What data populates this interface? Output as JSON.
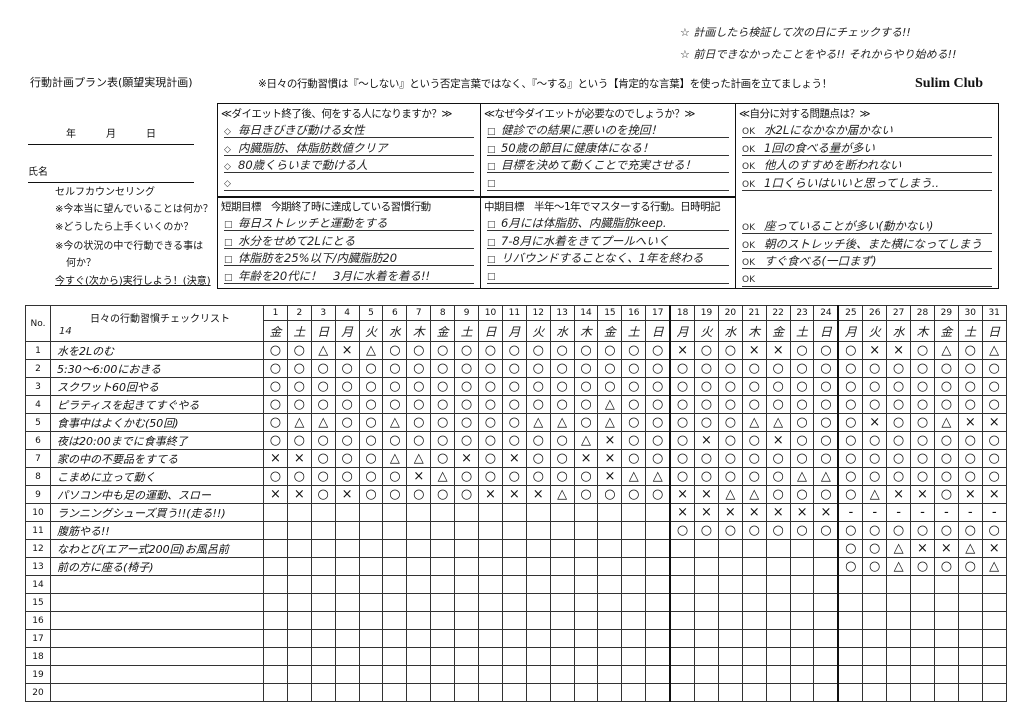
{
  "header": {
    "title": "行動計画プラン表(願望実現計画)",
    "notice": "※日々の行動習慣は『〜しない』という否定言葉ではなく、『〜する』という【肯定的な言葉】を使った計画を立てましょう！",
    "brand": "Sulim Club",
    "memo1": "☆ 計画したら検証して次の日にチェックする!!",
    "memo2": "☆ 前日できなかったことをやる!! それからやり始める!!"
  },
  "left": {
    "date_label": "年　　　月　　　日",
    "name_label": "氏名",
    "counseling": "セルフカウンセリング",
    "q1": "※今本当に望んでいることは何か？",
    "q2": "※どうしたら上手くいくのか？",
    "q3": "※今の状況の中で行動できる事は",
    "q3b": "何か？",
    "action": "今すぐ(次から)実行しよう！(決意)"
  },
  "boxes": {
    "after": {
      "title": "≪ダイエット終了後、何をする人になりますか？≫",
      "bullet": "◇",
      "items": [
        "毎日きびきび動ける女性",
        "内臓脂肪、体脂肪数値クリア",
        "80歳くらいまで動ける人",
        ""
      ]
    },
    "why": {
      "title": "≪なぜ今ダイエットが必要なのでしょうか？≫",
      "bullet": "□",
      "items": [
        "健診での結果に悪いのを挽回！",
        "50歳の節目に健康体になる！",
        "目標を決めて動くことで充実させる！",
        ""
      ]
    },
    "problems": {
      "title": "≪自分に対する問題点は？≫",
      "bullet": "OK",
      "items": [
        "水2Lになかなか届かない",
        "1回の食べる量が多い",
        "他人のすすめを断われない",
        "1口くらいはいいと思ってしまう..",
        "座っていることが多い(動かない)",
        "朝のストレッチ後、また横になってしまう",
        "すぐ食べる(一口まず)",
        ""
      ]
    },
    "short": {
      "title": "短期目標　今期終了時に達成している習慣行動",
      "bullet": "□",
      "items": [
        "毎日ストレッチと運動をする",
        "水分をせめて2Lにとる",
        "体脂肪を25%以下/内臓脂肪20",
        "年齢を20代に！　3月に水着を着る!!"
      ]
    },
    "mid": {
      "title": "中期目標　半年〜1年でマスターする行動。日時明記",
      "bullet": "□",
      "items": [
        "6月には体脂肪、内臓脂肪keep.",
        "7-8月に水着をきてプールへいく",
        "リバウンドすることなく、1年を終わる",
        ""
      ]
    }
  },
  "checklist": {
    "no_label": "No.",
    "title": "日々の行動習慣チェックリスト",
    "title_note": "14",
    "days": [
      "1",
      "2",
      "3",
      "4",
      "5",
      "6",
      "7",
      "8",
      "9",
      "10",
      "11",
      "12",
      "13",
      "14",
      "15",
      "16",
      "17",
      "18",
      "19",
      "20",
      "21",
      "22",
      "23",
      "24",
      "25",
      "26",
      "27",
      "28",
      "29",
      "30",
      "31"
    ],
    "weekdays": [
      "金",
      "土",
      "日",
      "月",
      "火",
      "水",
      "木",
      "金",
      "土",
      "日",
      "月",
      "火",
      "水",
      "木",
      "金",
      "土",
      "日",
      "月",
      "火",
      "水",
      "木",
      "金",
      "土",
      "日",
      "月",
      "火",
      "水",
      "木",
      "金",
      "土",
      "日"
    ],
    "rows": [
      {
        "no": "1",
        "item": "水を2Lのむ",
        "marks": [
          "○",
          "○",
          "△",
          "×",
          "△",
          "○",
          "○",
          "○",
          "○",
          "○",
          "○",
          "○",
          "○",
          "○",
          "○",
          "○",
          "○",
          "×",
          "○",
          "○",
          "×",
          "×",
          "○",
          "○",
          "○",
          "×",
          "×",
          "○",
          "△",
          "○",
          "△"
        ]
      },
      {
        "no": "2",
        "item": "5:30〜6:00におきる",
        "marks": [
          "○",
          "○",
          "○",
          "○",
          "○",
          "○",
          "○",
          "○",
          "○",
          "○",
          "○",
          "○",
          "○",
          "○",
          "○",
          "○",
          "○",
          "○",
          "○",
          "○",
          "○",
          "○",
          "○",
          "○",
          "○",
          "○",
          "○",
          "○",
          "○",
          "○",
          "○"
        ]
      },
      {
        "no": "3",
        "item": "スクワット60回やる",
        "marks": [
          "○",
          "○",
          "○",
          "○",
          "○",
          "○",
          "○",
          "○",
          "○",
          "○",
          "○",
          "○",
          "○",
          "○",
          "○",
          "○",
          "○",
          "○",
          "○",
          "○",
          "○",
          "○",
          "○",
          "○",
          "○",
          "○",
          "○",
          "○",
          "○",
          "○",
          "○"
        ]
      },
      {
        "no": "4",
        "item": "ピラティスを起きてすぐやる",
        "marks": [
          "○",
          "○",
          "○",
          "○",
          "○",
          "○",
          "○",
          "○",
          "○",
          "○",
          "○",
          "○",
          "○",
          "○",
          "△",
          "○",
          "○",
          "○",
          "○",
          "○",
          "○",
          "○",
          "○",
          "○",
          "○",
          "○",
          "○",
          "○",
          "○",
          "○",
          "○"
        ]
      },
      {
        "no": "5",
        "item": "食事中はよくかむ(50回)",
        "marks": [
          "○",
          "△",
          "△",
          "○",
          "○",
          "△",
          "○",
          "○",
          "○",
          "○",
          "○",
          "△",
          "△",
          "○",
          "△",
          "○",
          "○",
          "○",
          "○",
          "○",
          "△",
          "△",
          "○",
          "○",
          "○",
          "×",
          "○",
          "○",
          "△",
          "×",
          "×"
        ]
      },
      {
        "no": "6",
        "item": "夜は20:00までに食事終了",
        "marks": [
          "○",
          "○",
          "○",
          "○",
          "○",
          "○",
          "○",
          "○",
          "○",
          "○",
          "○",
          "○",
          "○",
          "△",
          "×",
          "○",
          "○",
          "○",
          "×",
          "○",
          "○",
          "×",
          "○",
          "○",
          "○",
          "○",
          "○",
          "○",
          "○",
          "○",
          "○"
        ]
      },
      {
        "no": "7",
        "item": "家の中の不要品をすてる",
        "marks": [
          "×",
          "×",
          "○",
          "○",
          "○",
          "△",
          "△",
          "○",
          "×",
          "○",
          "×",
          "○",
          "○",
          "×",
          "×",
          "○",
          "○",
          "○",
          "○",
          "○",
          "○",
          "○",
          "○",
          "○",
          "○",
          "○",
          "○",
          "○",
          "○",
          "○",
          "○"
        ]
      },
      {
        "no": "8",
        "item": "こまめに立って動く",
        "marks": [
          "○",
          "○",
          "○",
          "○",
          "○",
          "○",
          "×",
          "△",
          "○",
          "○",
          "○",
          "○",
          "○",
          "○",
          "×",
          "△",
          "△",
          "○",
          "○",
          "○",
          "○",
          "○",
          "△",
          "△",
          "○",
          "○",
          "○",
          "○",
          "○",
          "○",
          "○"
        ]
      },
      {
        "no": "9",
        "item": "パソコン中も足の運動、スロー",
        "marks": [
          "×",
          "×",
          "○",
          "×",
          "○",
          "○",
          "○",
          "○",
          "○",
          "×",
          "×",
          "×",
          "△",
          "○",
          "○",
          "○",
          "○",
          "×",
          "×",
          "△",
          "△",
          "○",
          "○",
          "○",
          "○",
          "△",
          "×",
          "×",
          "○",
          "×",
          "×"
        ]
      },
      {
        "no": "10",
        "item": "ランニングシューズ買う!!(走る!!)",
        "marks": [
          "",
          "",
          "",
          "",
          "",
          "",
          "",
          "",
          "",
          "",
          "",
          "",
          "",
          "",
          "",
          "",
          "",
          "×",
          "×",
          "×",
          "×",
          "×",
          "×",
          "×",
          "-",
          "-",
          "-",
          "-",
          "-",
          "-",
          "-"
        ]
      },
      {
        "no": "11",
        "item": "腹筋やる!!",
        "marks": [
          "",
          "",
          "",
          "",
          "",
          "",
          "",
          "",
          "",
          "",
          "",
          "",
          "",
          "",
          "",
          "",
          "",
          "○",
          "○",
          "○",
          "○",
          "○",
          "○",
          "○",
          "○",
          "○",
          "○",
          "○",
          "○",
          "○",
          "○"
        ]
      },
      {
        "no": "12",
        "item": "なわとび(エアー式200回)お風呂前",
        "marks": [
          "",
          "",
          "",
          "",
          "",
          "",
          "",
          "",
          "",
          "",
          "",
          "",
          "",
          "",
          "",
          "",
          "",
          "",
          "",
          "",
          "",
          "",
          "",
          "",
          "○",
          "○",
          "△",
          "×",
          "×",
          "△",
          "×"
        ]
      },
      {
        "no": "13",
        "item": "前の方に座る(椅子)",
        "marks": [
          "",
          "",
          "",
          "",
          "",
          "",
          "",
          "",
          "",
          "",
          "",
          "",
          "",
          "",
          "",
          "",
          "",
          "",
          "",
          "",
          "",
          "",
          "",
          "",
          "○",
          "○",
          "△",
          "○",
          "○",
          "○",
          "△"
        ]
      },
      {
        "no": "14",
        "item": "",
        "marks": []
      },
      {
        "no": "15",
        "item": "",
        "marks": []
      },
      {
        "no": "16",
        "item": "",
        "marks": []
      },
      {
        "no": "17",
        "item": "",
        "marks": []
      },
      {
        "no": "18",
        "item": "",
        "marks": []
      },
      {
        "no": "19",
        "item": "",
        "marks": []
      },
      {
        "no": "20",
        "item": "",
        "marks": []
      }
    ]
  }
}
